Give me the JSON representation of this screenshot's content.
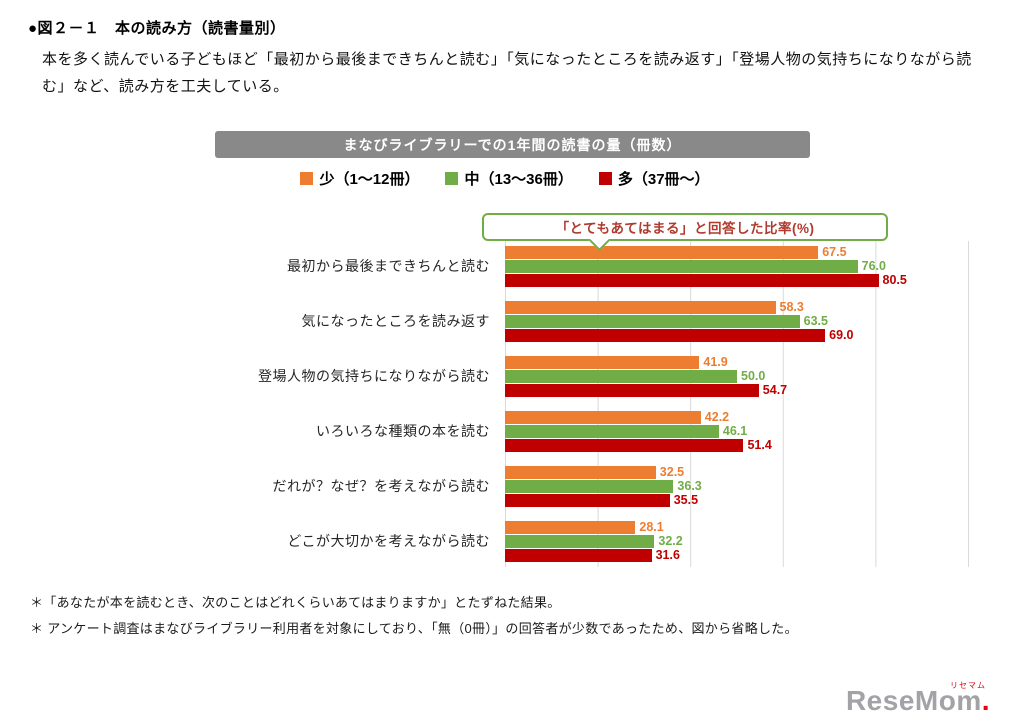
{
  "page": {
    "title": "●図２－１　本の読み方（読書量別）",
    "description": "本を多く読んでいる子どもほど「最初から最後まできちんと読む」「気になったところを読み返す」「登場人物の気持ちになりながら読む」など、読み方を工夫している。",
    "footnotes": [
      "＊「あなたが本を読むとき、次のことはどれくらいあてはまりますか」とたずねた結果。",
      "＊ アンケート調査はまなびライブラリー利用者を対象にしており、「無（0冊）」の回答者が少数であったため、図から省略した。"
    ],
    "logo": {
      "text": "ReseMom",
      "dot": ".",
      "ruby": "リセマム"
    }
  },
  "chart_data": {
    "type": "bar",
    "orientation": "horizontal",
    "header": "まなびライブラリーでの1年間の読書の量（冊数）",
    "annotation": "「とてもあてはまる」と回答した比率(%)",
    "categories": [
      "最初から最後まできちんと読む",
      "気になったところを読み返す",
      "登場人物の気持ちになりながら読む",
      "いろいろな種類の本を読む",
      "だれが？なぜ？を考えながら読む",
      "どこが大切かを考えながら読む"
    ],
    "series": [
      {
        "name": "少（1～12冊）",
        "color": "#ED7D31",
        "values": [
          67.5,
          58.3,
          41.9,
          42.2,
          32.5,
          28.1
        ]
      },
      {
        "name": "中（13～36冊）",
        "color": "#70AD47",
        "values": [
          76.0,
          63.5,
          50.0,
          46.1,
          36.3,
          32.2
        ]
      },
      {
        "name": "多（37冊～）",
        "color": "#C00000",
        "values": [
          80.5,
          69.0,
          54.7,
          51.4,
          35.5,
          31.6
        ]
      }
    ],
    "xlim": [
      0,
      100
    ],
    "grid": true,
    "legend_position": "top",
    "value_label_decimals": 1,
    "header_bg": "#898989",
    "annotation_border": "#70AD47",
    "annotation_text_color": "#B03A2E",
    "gridline_color": "#d9d9d9"
  }
}
